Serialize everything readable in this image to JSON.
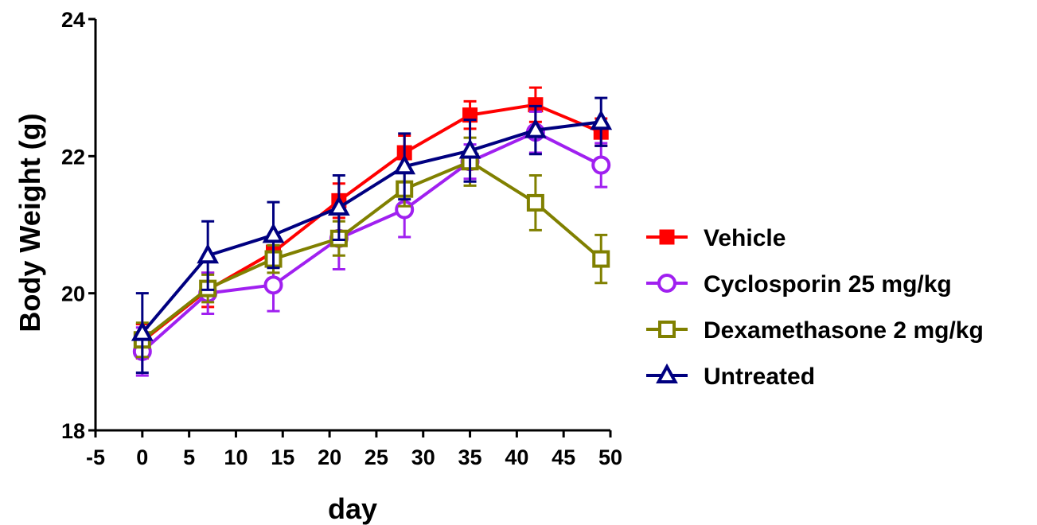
{
  "chart_data": {
    "type": "line",
    "title": "",
    "xlabel": "day",
    "ylabel": "Body Weight (g)",
    "xlim": [
      -5,
      50
    ],
    "ylim": [
      18,
      24
    ],
    "x_ticks": [
      "-5",
      "0",
      "5",
      "10",
      "15",
      "20",
      "25",
      "30",
      "35",
      "40",
      "45",
      "50"
    ],
    "y_ticks": [
      "18",
      "20",
      "22",
      "24"
    ],
    "grid": false,
    "legend_position": "right",
    "x": [
      0,
      7,
      14,
      21,
      28,
      35,
      42,
      49
    ],
    "series": [
      {
        "name": "Vehicle",
        "color": "#ff0000",
        "marker": "square-filled",
        "values": [
          19.3,
          20.05,
          20.6,
          21.35,
          22.05,
          22.6,
          22.75,
          22.35
        ],
        "errors": [
          0.25,
          0.25,
          0.2,
          0.25,
          0.25,
          0.2,
          0.25,
          0.2
        ]
      },
      {
        "name": "Cyclosporin 25 mg/kg",
        "color": "#a020f0",
        "marker": "circle-open",
        "values": [
          19.15,
          20.0,
          20.12,
          20.8,
          21.22,
          21.92,
          22.35,
          21.87
        ],
        "errors": [
          0.35,
          0.3,
          0.38,
          0.45,
          0.4,
          0.25,
          0.3,
          0.32
        ]
      },
      {
        "name": "Dexamethasone 2 mg/kg",
        "color": "#808000",
        "marker": "square-open",
        "values": [
          19.32,
          20.07,
          20.5,
          20.8,
          21.52,
          21.92,
          21.32,
          20.5
        ],
        "errors": [
          0.25,
          0.2,
          0.2,
          0.25,
          0.25,
          0.35,
          0.4,
          0.35
        ]
      },
      {
        "name": "Untreated",
        "color": "#000080",
        "marker": "triangle-open",
        "values": [
          19.42,
          20.55,
          20.85,
          21.25,
          21.85,
          22.08,
          22.38,
          22.5
        ],
        "errors": [
          0.58,
          0.5,
          0.48,
          0.47,
          0.48,
          0.45,
          0.35,
          0.35
        ]
      }
    ]
  }
}
